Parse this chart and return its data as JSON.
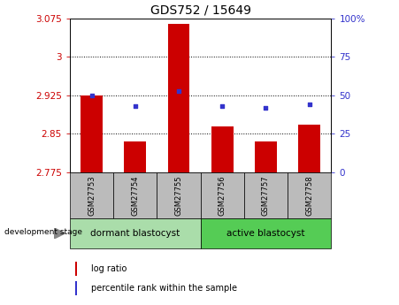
{
  "title": "GDS752 / 15649",
  "categories": [
    "GSM27753",
    "GSM27754",
    "GSM27755",
    "GSM27756",
    "GSM27757",
    "GSM27758"
  ],
  "log_ratio": [
    2.925,
    2.835,
    3.065,
    2.865,
    2.835,
    2.868
  ],
  "percentile_rank": [
    50,
    43,
    53,
    43,
    42,
    44
  ],
  "ylim_left": [
    2.775,
    3.075
  ],
  "ylim_right": [
    0,
    100
  ],
  "yticks_left": [
    2.775,
    2.85,
    2.925,
    3.0,
    3.075
  ],
  "yticks_right": [
    0,
    25,
    50,
    75,
    100
  ],
  "ytick_labels_left": [
    "2.775",
    "2.85",
    "2.925",
    "3",
    "3.075"
  ],
  "ytick_labels_right": [
    "0",
    "25",
    "50",
    "75",
    "100%"
  ],
  "hlines": [
    2.85,
    2.925,
    3.0
  ],
  "bar_color": "#cc0000",
  "dot_color": "#3333cc",
  "bar_width": 0.5,
  "group1_label": "dormant blastocyst",
  "group2_label": "active blastocyst",
  "group1_color": "#aaddaa",
  "group2_color": "#55cc55",
  "stage_label": "development stage",
  "legend_bar_label": "log ratio",
  "legend_dot_label": "percentile rank within the sample",
  "tick_bg_color": "#bbbbbb",
  "title_fontsize": 10,
  "axis_fontsize": 7.5,
  "legend_fontsize": 7,
  "cat_fontsize": 6
}
